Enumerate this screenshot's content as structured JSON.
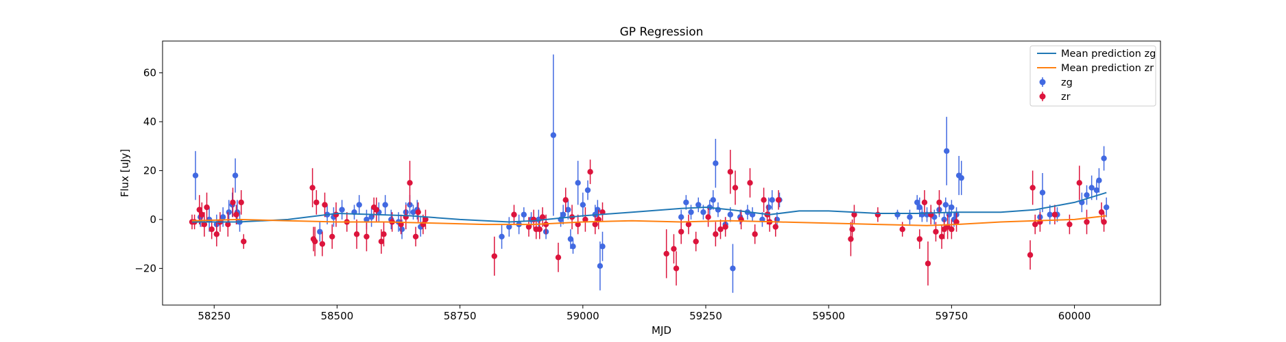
{
  "chart_data": {
    "type": "scatter",
    "title": "GP Regression",
    "xlabel": "MJD",
    "ylabel": "Flux [uJy]",
    "xlim": [
      58145,
      60175
    ],
    "ylim": [
      -35,
      73
    ],
    "x_ticks": [
      58250,
      58500,
      58750,
      59000,
      59250,
      59500,
      59750,
      60000
    ],
    "y_ticks": [
      -20,
      0,
      20,
      40,
      60
    ],
    "grid": false,
    "legend_position": "top-right",
    "series": [
      {
        "name": "Mean prediction zg",
        "kind": "line",
        "color": "#1f77b4",
        "x": [
          58205,
          58300,
          58400,
          58500,
          58580,
          58650,
          58750,
          58850,
          58900,
          59000,
          59100,
          59200,
          59250,
          59300,
          59380,
          59440,
          59500,
          59600,
          59680,
          59760,
          59850,
          59920,
          60000,
          60065
        ],
        "y": [
          -1,
          -1,
          0,
          2.5,
          2,
          1.5,
          0,
          -1,
          -0.5,
          1.5,
          3,
          4.5,
          5,
          4,
          2,
          3.5,
          3.5,
          2.5,
          2.5,
          3,
          3,
          4,
          7,
          11
        ]
      },
      {
        "name": "Mean prediction zr",
        "kind": "line",
        "color": "#ff7f0e",
        "x": [
          58205,
          58300,
          58400,
          58500,
          58600,
          58700,
          58800,
          58900,
          59000,
          59100,
          59200,
          59300,
          59400,
          59500,
          59600,
          59700,
          59760,
          59850,
          59920,
          60000,
          60065
        ],
        "y": [
          -0.5,
          0,
          -0.5,
          -1,
          -1,
          -1.5,
          -2,
          -2,
          -1,
          -0.5,
          -1,
          -0.5,
          -1,
          -1.5,
          -2,
          -2.5,
          -2,
          -1,
          -0.5,
          0,
          1.5
        ]
      },
      {
        "name": "zg",
        "kind": "errorbar",
        "color": "#4169e1",
        "x": [
          58212,
          58222,
          58240,
          58255,
          58268,
          58280,
          58287,
          58293,
          58297,
          58302,
          58465,
          58480,
          58493,
          58510,
          58535,
          58545,
          58560,
          58570,
          58585,
          58598,
          58610,
          58625,
          58632,
          58640,
          58648,
          58655,
          58663,
          58670,
          58835,
          58850,
          58870,
          58880,
          58895,
          58910,
          58925,
          58940,
          58955,
          58960,
          58970,
          58975,
          58980,
          58990,
          59000,
          59010,
          59025,
          59030,
          59035,
          59040,
          59200,
          59210,
          59220,
          59235,
          59245,
          59258,
          59265,
          59270,
          59275,
          59290,
          59300,
          59305,
          59320,
          59335,
          59345,
          59365,
          59378,
          59385,
          59395,
          59400,
          59640,
          59665,
          59680,
          59685,
          59690,
          59700,
          59715,
          59725,
          59735,
          59738,
          59740,
          59745,
          59750,
          59755,
          59760,
          59765,
          59770,
          59930,
          59935,
          59950,
          59965,
          60015,
          60025,
          60035,
          60045,
          60050,
          60060,
          60065
        ],
        "y": [
          18,
          1,
          0,
          -2,
          1,
          3,
          6,
          18,
          3,
          -1,
          -5,
          2,
          1,
          4,
          3,
          6,
          0,
          1,
          3,
          6,
          0,
          -1,
          -4,
          3,
          6,
          3,
          4,
          -3,
          -7,
          -3,
          -2,
          2,
          0,
          0,
          -5,
          34.5,
          0,
          2,
          4,
          -8,
          -11,
          15,
          6,
          12,
          2,
          4,
          -19,
          -11,
          1,
          7,
          3,
          6,
          3,
          5,
          8,
          23,
          4,
          -2,
          2,
          -20,
          1,
          3,
          2,
          0,
          5,
          8,
          0,
          8,
          2,
          1,
          7,
          5,
          2,
          2,
          1,
          4,
          0,
          6,
          28,
          2,
          5,
          0,
          2,
          18,
          17,
          1,
          11,
          2,
          2,
          7,
          10,
          13,
          12,
          16,
          25,
          5
        ],
        "yerr": [
          10,
          4,
          5,
          4,
          4,
          5,
          5,
          7,
          5,
          4,
          4,
          4,
          4,
          4,
          3,
          4,
          4,
          4,
          4,
          4,
          4,
          4,
          4,
          4,
          4,
          3,
          4,
          4,
          5,
          4,
          4,
          3,
          3,
          4,
          3,
          33,
          3,
          4,
          4,
          4,
          3,
          9,
          5,
          4,
          4,
          4,
          10,
          6,
          3,
          3,
          3,
          3,
          3,
          3,
          4,
          10,
          3,
          3,
          3,
          10,
          3,
          3,
          3,
          3,
          4,
          4,
          3,
          3,
          2,
          3,
          3,
          4,
          3,
          3,
          3,
          3,
          3,
          3,
          14,
          4,
          3,
          3,
          3,
          8,
          7,
          3,
          8,
          4,
          3,
          4,
          4,
          5,
          4,
          5,
          5,
          4
        ]
      },
      {
        "name": "zr",
        "kind": "errorbar",
        "color": "#dc143c",
        "x": [
          58205,
          58210,
          58220,
          58225,
          58230,
          58235,
          58245,
          58255,
          58262,
          58278,
          58288,
          58295,
          58305,
          58310,
          58450,
          58452,
          58455,
          58458,
          58470,
          58475,
          58490,
          58498,
          58520,
          58540,
          58560,
          58575,
          58580,
          58590,
          58595,
          58612,
          58630,
          58640,
          58648,
          58660,
          58665,
          58675,
          58680,
          58820,
          58860,
          58890,
          58900,
          58905,
          58912,
          58918,
          58925,
          58950,
          58965,
          58978,
          58990,
          59005,
          59015,
          59025,
          59032,
          59040,
          59170,
          59185,
          59190,
          59200,
          59215,
          59230,
          59255,
          59270,
          59280,
          59290,
          59300,
          59310,
          59322,
          59340,
          59350,
          59368,
          59375,
          59380,
          59392,
          59398,
          59545,
          59548,
          59552,
          59600,
          59650,
          59685,
          59695,
          59702,
          59708,
          59718,
          59725,
          59730,
          59735,
          59742,
          59750,
          59760,
          59910,
          59915,
          59920,
          59930,
          59960,
          59990,
          60010,
          60025,
          60055,
          60060
        ],
        "y": [
          -1,
          -1,
          4,
          2,
          -2,
          5,
          -4,
          -6,
          -1,
          -2,
          7,
          2,
          7,
          -9,
          13,
          -8,
          -9,
          7,
          -10,
          6,
          -7,
          2,
          -1,
          -6,
          -7,
          5,
          4,
          -9,
          -6,
          -1,
          -2,
          1,
          15,
          -7,
          3,
          -2,
          0,
          -15,
          2,
          -3,
          0,
          -4,
          -4,
          1,
          -2,
          -15.5,
          8,
          1,
          -2,
          0,
          19.5,
          -2,
          0,
          3,
          -14,
          -12,
          -20,
          -5,
          -2,
          -9,
          1,
          -6,
          -4,
          -3,
          19.5,
          13,
          0,
          15,
          -6,
          8,
          2,
          -1,
          -3,
          8,
          -8,
          -4,
          2,
          2,
          -4,
          -8,
          7,
          -18,
          2,
          -5,
          7,
          -7,
          -4,
          -3,
          -4,
          -1,
          -14.5,
          13,
          -2,
          -1,
          2,
          -2,
          15,
          -1,
          3,
          -1
        ],
        "yerr": [
          3,
          3,
          6,
          5,
          5,
          6,
          4,
          5,
          4,
          5,
          6,
          4,
          5,
          3,
          8,
          5,
          6,
          5,
          5,
          5,
          5,
          5,
          4,
          6,
          6,
          4,
          5,
          5,
          5,
          4,
          4,
          5,
          9,
          4,
          4,
          4,
          4,
          8,
          4,
          4,
          4,
          4,
          4,
          4,
          4,
          6,
          5,
          5,
          4,
          5,
          5,
          4,
          4,
          4,
          10,
          6,
          7,
          5,
          4,
          4,
          4,
          5,
          4,
          4,
          9,
          7,
          4,
          6,
          4,
          5,
          4,
          4,
          4,
          4,
          7,
          4,
          4,
          3,
          3,
          4,
          5,
          9,
          4,
          4,
          5,
          5,
          4,
          5,
          4,
          4,
          6,
          7,
          4,
          4,
          4,
          4,
          7,
          5,
          4,
          4
        ]
      }
    ]
  }
}
